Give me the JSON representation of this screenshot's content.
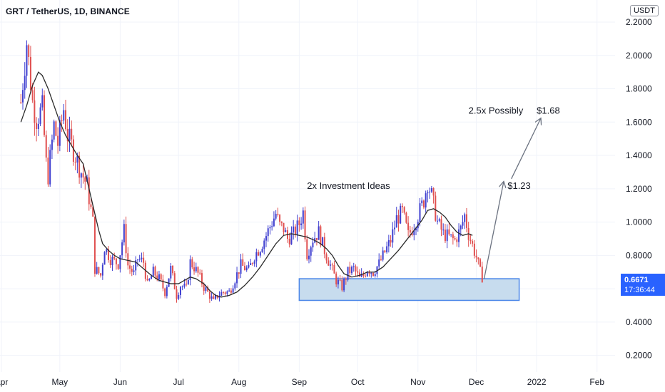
{
  "header": {
    "title": "GRT / TetherUS, 1D, BINANCE",
    "unit_button": "USDT"
  },
  "price_tag": {
    "price": "0.6671",
    "countdown": "17:36:44",
    "color": "#2962ff"
  },
  "colors": {
    "up": "#3f3fd0",
    "down": "#e05050",
    "ma": "#2a2a2a",
    "zone_fill": "#c7dcee",
    "zone_border": "#4a86e8",
    "arrow": "#6b7280",
    "grid": "#f0f3fa"
  },
  "chart_data": {
    "type": "candlestick",
    "title": "GRT / TetherUS, 1D, BINANCE",
    "y_ticks": [
      "0.2000",
      "0.4000",
      "0.6000",
      "0.8000",
      "1.0000",
      "1.2000",
      "1.4000",
      "1.6000",
      "1.8000",
      "2.0000",
      "2.2000"
    ],
    "ylim": [
      0.1,
      2.23
    ],
    "x_ticks": [
      {
        "label": "Apr",
        "day": 0
      },
      {
        "label": "May",
        "day": 30
      },
      {
        "label": "Jun",
        "day": 61
      },
      {
        "label": "Jul",
        "day": 91
      },
      {
        "label": "Aug",
        "day": 122
      },
      {
        "label": "Sep",
        "day": 153
      },
      {
        "label": "Oct",
        "day": 183
      },
      {
        "label": "Nov",
        "day": 214
      },
      {
        "label": "Dec",
        "day": 244
      },
      {
        "label": "2022",
        "day": 275
      },
      {
        "label": "Feb",
        "day": 306
      }
    ],
    "xlim_days": [
      0,
      316
    ],
    "close_path": [
      [
        10,
        1.72
      ],
      [
        13,
        2.08
      ],
      [
        16,
        1.72
      ],
      [
        18,
        1.62
      ],
      [
        21,
        1.68
      ],
      [
        23,
        1.35
      ],
      [
        24,
        1.28
      ],
      [
        27,
        1.58
      ],
      [
        29,
        1.47
      ],
      [
        32,
        1.68
      ],
      [
        34,
        1.52
      ],
      [
        37,
        1.43
      ],
      [
        41,
        1.3
      ],
      [
        44,
        1.22
      ],
      [
        47,
        1.0
      ],
      [
        48,
        0.72
      ],
      [
        51,
        0.68
      ],
      [
        53,
        0.85
      ],
      [
        56,
        0.78
      ],
      [
        60,
        0.75
      ],
      [
        63,
        0.95
      ],
      [
        65,
        0.74
      ],
      [
        68,
        0.69
      ],
      [
        70,
        0.78
      ],
      [
        73,
        0.76
      ],
      [
        75,
        0.62
      ],
      [
        78,
        0.7
      ],
      [
        81,
        0.66
      ],
      [
        84,
        0.58
      ],
      [
        87,
        0.72
      ],
      [
        90,
        0.56
      ],
      [
        92,
        0.62
      ],
      [
        95,
        0.6
      ],
      [
        97,
        0.76
      ],
      [
        99,
        0.73
      ],
      [
        101,
        0.69
      ],
      [
        104,
        0.61
      ],
      [
        107,
        0.56
      ],
      [
        109,
        0.52
      ],
      [
        111,
        0.56
      ],
      [
        114,
        0.58
      ],
      [
        117,
        0.58
      ],
      [
        120,
        0.66
      ],
      [
        123,
        0.74
      ],
      [
        127,
        0.71
      ],
      [
        130,
        0.8
      ],
      [
        133,
        0.85
      ],
      [
        136,
        0.92
      ],
      [
        139,
        1.0
      ],
      [
        141,
        1.05
      ],
      [
        143,
        0.98
      ],
      [
        145,
        0.96
      ],
      [
        147,
        0.9
      ],
      [
        150,
        0.93
      ],
      [
        153,
        0.99
      ],
      [
        155,
        1.06
      ],
      [
        157,
        0.81
      ],
      [
        160,
        0.9
      ],
      [
        163,
        0.94
      ],
      [
        166,
        0.83
      ],
      [
        169,
        0.74
      ],
      [
        172,
        0.65
      ],
      [
        175,
        0.61
      ],
      [
        178,
        0.7
      ],
      [
        181,
        0.72
      ],
      [
        184,
        0.66
      ],
      [
        186,
        0.68
      ],
      [
        188,
        0.72
      ],
      [
        191,
        0.7
      ],
      [
        194,
        0.75
      ],
      [
        197,
        0.82
      ],
      [
        200,
        0.89
      ],
      [
        203,
        1.02
      ],
      [
        206,
        1.06
      ],
      [
        209,
        0.92
      ],
      [
        211,
        0.96
      ],
      [
        214,
        1.04
      ],
      [
        217,
        1.13
      ],
      [
        219,
        1.24
      ],
      [
        221,
        1.16
      ],
      [
        224,
        1.0
      ],
      [
        227,
        0.93
      ],
      [
        230,
        0.91
      ],
      [
        233,
        0.89
      ],
      [
        236,
        0.96
      ],
      [
        238,
        1.04
      ],
      [
        240,
        0.93
      ],
      [
        242,
        0.86
      ],
      [
        244,
        0.79
      ],
      [
        246,
        0.7
      ],
      [
        247,
        0.67
      ]
    ],
    "ma_path": [
      [
        10,
        1.6
      ],
      [
        13,
        1.7
      ],
      [
        16,
        1.82
      ],
      [
        19,
        1.9
      ],
      [
        21,
        1.88
      ],
      [
        24,
        1.8
      ],
      [
        27,
        1.7
      ],
      [
        30,
        1.6
      ],
      [
        33,
        1.52
      ],
      [
        36,
        1.46
      ],
      [
        39,
        1.4
      ],
      [
        42,
        1.35
      ],
      [
        44,
        1.25
      ],
      [
        47,
        1.1
      ],
      [
        50,
        0.95
      ],
      [
        52,
        0.87
      ],
      [
        55,
        0.83
      ],
      [
        58,
        0.8
      ],
      [
        61,
        0.78
      ],
      [
        65,
        0.77
      ],
      [
        69,
        0.76
      ],
      [
        73,
        0.72
      ],
      [
        77,
        0.68
      ],
      [
        81,
        0.65
      ],
      [
        84,
        0.64
      ],
      [
        87,
        0.63
      ],
      [
        91,
        0.63
      ],
      [
        94,
        0.65
      ],
      [
        97,
        0.67
      ],
      [
        100,
        0.66
      ],
      [
        104,
        0.63
      ],
      [
        107,
        0.59
      ],
      [
        110,
        0.56
      ],
      [
        113,
        0.55
      ],
      [
        117,
        0.56
      ],
      [
        121,
        0.58
      ],
      [
        125,
        0.62
      ],
      [
        129,
        0.67
      ],
      [
        133,
        0.73
      ],
      [
        137,
        0.8
      ],
      [
        141,
        0.87
      ],
      [
        145,
        0.92
      ],
      [
        149,
        0.93
      ],
      [
        153,
        0.92
      ],
      [
        157,
        0.91
      ],
      [
        161,
        0.89
      ],
      [
        164,
        0.87
      ],
      [
        167,
        0.84
      ],
      [
        170,
        0.8
      ],
      [
        173,
        0.74
      ],
      [
        176,
        0.69
      ],
      [
        180,
        0.67
      ],
      [
        184,
        0.68
      ],
      [
        188,
        0.7
      ],
      [
        192,
        0.7
      ],
      [
        196,
        0.73
      ],
      [
        200,
        0.78
      ],
      [
        204,
        0.83
      ],
      [
        208,
        0.89
      ],
      [
        212,
        0.95
      ],
      [
        216,
        1.01
      ],
      [
        219,
        1.07
      ],
      [
        222,
        1.08
      ],
      [
        225,
        1.06
      ],
      [
        228,
        1.03
      ],
      [
        231,
        0.98
      ],
      [
        234,
        0.94
      ],
      [
        237,
        0.92
      ],
      [
        240,
        0.93
      ],
      [
        242,
        0.92
      ]
    ],
    "support_zone": {
      "day_start": 153,
      "day_end": 266,
      "price_low": 0.53,
      "price_high": 0.66
    },
    "annotations": [
      {
        "text": "2x Investment Ideas",
        "day": 157,
        "price": 1.2
      },
      {
        "text": "2.5x Possibly",
        "day": 240,
        "price": 1.65
      },
      {
        "text": "$1.23",
        "day": 260,
        "price": 1.2
      },
      {
        "text": "$1.68",
        "day": 275,
        "price": 1.65
      }
    ],
    "arrows": [
      {
        "from_day": 248,
        "from_price": 0.66,
        "to_day": 258,
        "to_price": 1.24
      },
      {
        "from_day": 262,
        "from_price": 1.26,
        "to_day": 277,
        "to_price": 1.62
      }
    ]
  }
}
